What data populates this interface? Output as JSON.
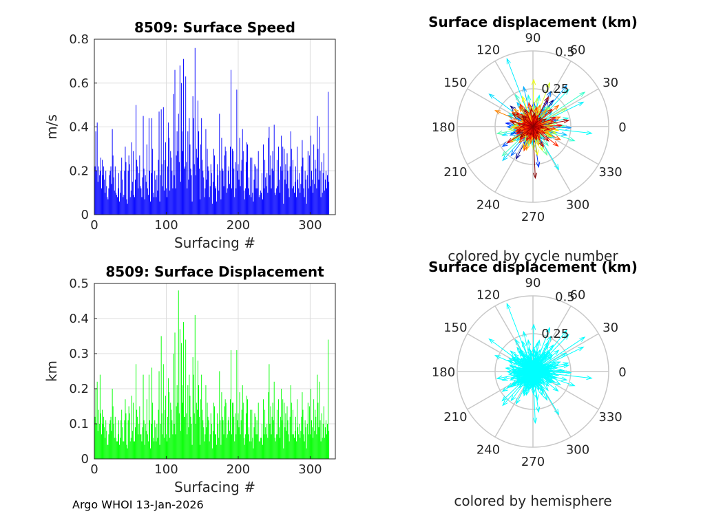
{
  "figure": {
    "footer": "Argo WHOI 13-Jan-2026",
    "colors": {
      "axis": "#262626",
      "grid": "#dcdcdc",
      "polar_grid": "#c8c8c8"
    }
  },
  "chart_data": [
    {
      "type": "bar",
      "title": "8509: Surface Speed",
      "xlabel": "Surfacing #",
      "ylabel": "m/s",
      "xlim": [
        0,
        335
      ],
      "ylim": [
        0,
        0.8
      ],
      "xticks": [
        "0",
        "100",
        "200",
        "300"
      ],
      "xtick_values": [
        0,
        100,
        200,
        300
      ],
      "yticks": [
        "0",
        "0.2",
        "0.4",
        "0.6",
        "0.8"
      ],
      "ytick_values": [
        0,
        0.2,
        0.4,
        0.6,
        0.8
      ],
      "grid": true,
      "color": "#0000ff",
      "x_start": 1,
      "values": [
        0.22,
        0.38,
        0.2,
        0.42,
        0.15,
        0.22,
        0.18,
        0.2,
        0.26,
        0.12,
        0.25,
        0.18,
        0.22,
        0.16,
        0.1,
        0.2,
        0.13,
        0.08,
        0.07,
        0.12,
        0.18,
        0.2,
        0.22,
        0.14,
        0.39,
        0.27,
        0.17,
        0.11,
        0.22,
        0.1,
        0.09,
        0.08,
        0.12,
        0.19,
        0.06,
        0.1,
        0.2,
        0.26,
        0.16,
        0.08,
        0.09,
        0.2,
        0.31,
        0.24,
        0.07,
        0.05,
        0.2,
        0.27,
        0.23,
        0.08,
        0.11,
        0.33,
        0.15,
        0.29,
        0.09,
        0.08,
        0.16,
        0.5,
        0.25,
        0.22,
        0.12,
        0.19,
        0.27,
        0.13,
        0.12,
        0.08,
        0.17,
        0.45,
        0.21,
        0.07,
        0.18,
        0.15,
        0.32,
        0.12,
        0.09,
        0.44,
        0.2,
        0.06,
        0.19,
        0.44,
        0.3,
        0.1,
        0.08,
        0.2,
        0.16,
        0.08,
        0.18,
        0.11,
        0.25,
        0.47,
        0.06,
        0.18,
        0.48,
        0.23,
        0.13,
        0.49,
        0.11,
        0.25,
        0.33,
        0.12,
        0.08,
        0.22,
        0.42,
        0.35,
        0.11,
        0.29,
        0.26,
        0.2,
        0.12,
        0.55,
        0.18,
        0.66,
        0.12,
        0.27,
        0.38,
        0.29,
        0.46,
        0.24,
        0.68,
        0.15,
        0.6,
        0.38,
        0.29,
        0.71,
        0.21,
        0.22,
        0.63,
        0.24,
        0.12,
        0.38,
        0.16,
        0.44,
        0.32,
        0.21,
        0.18,
        0.06,
        0.54,
        0.44,
        0.23,
        0.76,
        0.18,
        0.3,
        0.26,
        0.52,
        0.38,
        0.21,
        0.07,
        0.32,
        0.44,
        0.25,
        0.2,
        0.17,
        0.08,
        0.12,
        0.39,
        0.16,
        0.3,
        0.22,
        0.2,
        0.08,
        0.13,
        0.23,
        0.19,
        0.05,
        0.15,
        0.3,
        0.27,
        0.12,
        0.13,
        0.06,
        0.23,
        0.18,
        0.11,
        0.46,
        0.2,
        0.07,
        0.35,
        0.21,
        0.2,
        0.13,
        0.27,
        0.31,
        0.29,
        0.1,
        0.12,
        0.2,
        0.22,
        0.14,
        0.31,
        0.66,
        0.12,
        0.3,
        0.29,
        0.21,
        0.08,
        0.24,
        0.12,
        0.57,
        0.2,
        0.23,
        0.16,
        0.35,
        0.13,
        0.2,
        0.25,
        0.39,
        0.29,
        0.11,
        0.07,
        0.12,
        0.24,
        0.33,
        0.32,
        0.12,
        0.17,
        0.09,
        0.26,
        0.08,
        0.26,
        0.1,
        0.06,
        0.16,
        0.23,
        0.22,
        0.12,
        0.21,
        0.12,
        0.29,
        0.08,
        0.09,
        0.11,
        0.1,
        0.19,
        0.07,
        0.32,
        0.12,
        0.25,
        0.17,
        0.13,
        0.19,
        0.1,
        0.35,
        0.4,
        0.18,
        0.27,
        0.12,
        0.21,
        0.29,
        0.2,
        0.41,
        0.1,
        0.09,
        0.12,
        0.25,
        0.13,
        0.31,
        0.16,
        0.1,
        0.22,
        0.36,
        0.2,
        0.31,
        0.05,
        0.3,
        0.16,
        0.23,
        0.14,
        0.28,
        0.2,
        0.12,
        0.08,
        0.22,
        0.38,
        0.3,
        0.12,
        0.25,
        0.13,
        0.1,
        0.15,
        0.22,
        0.08,
        0.31,
        0.16,
        0.12,
        0.19,
        0.1,
        0.14,
        0.22,
        0.34,
        0.26,
        0.12,
        0.08,
        0.2,
        0.16,
        0.05,
        0.18,
        0.29,
        0.12,
        0.27,
        0.13,
        0.36,
        0.2,
        0.16,
        0.1,
        0.32,
        0.14,
        0.25,
        0.21,
        0.12,
        0.45,
        0.3,
        0.16,
        0.4,
        0.2,
        0.08,
        0.24,
        0.1,
        0.19,
        0.28,
        0.11,
        0.16,
        0.2,
        0.12,
        0.18,
        0.56,
        0.15
      ]
    },
    {
      "type": "bar",
      "title": "8509: Surface Displacement",
      "xlabel": "Surfacing #",
      "ylabel": "km",
      "xlim": [
        0,
        335
      ],
      "ylim": [
        0,
        0.5
      ],
      "xticks": [
        "0",
        "100",
        "200",
        "300"
      ],
      "xtick_values": [
        0,
        100,
        200,
        300
      ],
      "yticks": [
        "0",
        "0.1",
        "0.2",
        "0.3",
        "0.4",
        "0.5"
      ],
      "ytick_values": [
        0,
        0.1,
        0.2,
        0.3,
        0.4,
        0.5
      ],
      "grid": true,
      "color": "#00ff00",
      "x_start": 1,
      "values": [
        0.12,
        0.2,
        0.1,
        0.22,
        0.08,
        0.14,
        0.1,
        0.24,
        0.13,
        0.07,
        0.14,
        0.1,
        0.12,
        0.09,
        0.06,
        0.11,
        0.08,
        0.04,
        0.04,
        0.07,
        0.1,
        0.11,
        0.12,
        0.08,
        0.2,
        0.15,
        0.1,
        0.06,
        0.12,
        0.06,
        0.05,
        0.05,
        0.07,
        0.11,
        0.04,
        0.06,
        0.11,
        0.14,
        0.09,
        0.05,
        0.05,
        0.11,
        0.17,
        0.13,
        0.04,
        0.03,
        0.11,
        0.15,
        0.13,
        0.05,
        0.06,
        0.18,
        0.08,
        0.16,
        0.05,
        0.05,
        0.09,
        0.27,
        0.14,
        0.12,
        0.07,
        0.1,
        0.15,
        0.07,
        0.07,
        0.05,
        0.09,
        0.24,
        0.11,
        0.04,
        0.1,
        0.08,
        0.17,
        0.07,
        0.05,
        0.24,
        0.11,
        0.03,
        0.1,
        0.26,
        0.16,
        0.06,
        0.05,
        0.11,
        0.09,
        0.05,
        0.1,
        0.06,
        0.14,
        0.25,
        0.04,
        0.1,
        0.35,
        0.13,
        0.07,
        0.27,
        0.06,
        0.14,
        0.18,
        0.07,
        0.05,
        0.12,
        0.23,
        0.19,
        0.06,
        0.16,
        0.14,
        0.11,
        0.07,
        0.3,
        0.1,
        0.36,
        0.07,
        0.15,
        0.21,
        0.16,
        0.48,
        0.13,
        0.37,
        0.08,
        0.33,
        0.21,
        0.16,
        0.39,
        0.12,
        0.12,
        0.34,
        0.13,
        0.07,
        0.21,
        0.09,
        0.24,
        0.18,
        0.12,
        0.1,
        0.04,
        0.29,
        0.24,
        0.13,
        0.41,
        0.1,
        0.16,
        0.14,
        0.28,
        0.21,
        0.12,
        0.04,
        0.17,
        0.24,
        0.14,
        0.11,
        0.09,
        0.05,
        0.07,
        0.21,
        0.09,
        0.16,
        0.12,
        0.11,
        0.05,
        0.07,
        0.13,
        0.1,
        0.03,
        0.08,
        0.16,
        0.15,
        0.07,
        0.07,
        0.04,
        0.13,
        0.1,
        0.06,
        0.25,
        0.11,
        0.04,
        0.19,
        0.12,
        0.11,
        0.07,
        0.15,
        0.17,
        0.16,
        0.06,
        0.07,
        0.11,
        0.12,
        0.08,
        0.17,
        0.31,
        0.07,
        0.16,
        0.16,
        0.12,
        0.05,
        0.13,
        0.07,
        0.31,
        0.11,
        0.13,
        0.09,
        0.19,
        0.07,
        0.11,
        0.14,
        0.21,
        0.16,
        0.06,
        0.04,
        0.07,
        0.13,
        0.18,
        0.17,
        0.07,
        0.09,
        0.05,
        0.14,
        0.05,
        0.14,
        0.06,
        0.03,
        0.09,
        0.13,
        0.12,
        0.07,
        0.11,
        0.07,
        0.16,
        0.05,
        0.05,
        0.06,
        0.06,
        0.1,
        0.04,
        0.17,
        0.07,
        0.14,
        0.09,
        0.07,
        0.1,
        0.06,
        0.19,
        0.27,
        0.1,
        0.15,
        0.07,
        0.12,
        0.16,
        0.11,
        0.22,
        0.06,
        0.05,
        0.07,
        0.14,
        0.07,
        0.17,
        0.09,
        0.06,
        0.12,
        0.2,
        0.11,
        0.17,
        0.03,
        0.16,
        0.09,
        0.13,
        0.08,
        0.15,
        0.11,
        0.07,
        0.05,
        0.12,
        0.21,
        0.16,
        0.07,
        0.14,
        0.07,
        0.06,
        0.08,
        0.12,
        0.05,
        0.17,
        0.09,
        0.07,
        0.1,
        0.06,
        0.08,
        0.12,
        0.19,
        0.14,
        0.07,
        0.05,
        0.11,
        0.09,
        0.03,
        0.1,
        0.16,
        0.07,
        0.15,
        0.07,
        0.2,
        0.11,
        0.09,
        0.06,
        0.17,
        0.08,
        0.14,
        0.12,
        0.07,
        0.24,
        0.16,
        0.09,
        0.22,
        0.11,
        0.05,
        0.13,
        0.06,
        0.1,
        0.15,
        0.06,
        0.09,
        0.11,
        0.07,
        0.1,
        0.34,
        0.08
      ]
    },
    {
      "type": "polar",
      "title": "Surface displacement (km)",
      "caption": "colored by cycle number",
      "rlim": [
        0,
        0.5
      ],
      "rticks": [
        "0.25",
        "0.5"
      ],
      "rtick_values": [
        0.25,
        0.5
      ],
      "angle_labels": [
        "0",
        "30",
        "60",
        "90",
        "120",
        "150",
        "180",
        "210",
        "240",
        "270",
        "300",
        "330"
      ],
      "angle_values": [
        0,
        30,
        60,
        90,
        120,
        150,
        180,
        210,
        240,
        270,
        300,
        330
      ],
      "color_scheme": "jet colormap by cycle number",
      "vectors_ref": "displacement"
    },
    {
      "type": "polar",
      "title": "Surface displacement (km)",
      "caption": "colored by hemisphere",
      "rlim": [
        0,
        0.5
      ],
      "rticks": [
        "0.25",
        "0.5"
      ],
      "rtick_values": [
        0.25,
        0.5
      ],
      "angle_labels": [
        "0",
        "30",
        "60",
        "90",
        "120",
        "150",
        "180",
        "210",
        "240",
        "270",
        "300",
        "330"
      ],
      "angle_values": [
        0,
        30,
        60,
        90,
        120,
        150,
        180,
        210,
        240,
        270,
        300,
        330
      ],
      "color_scheme": "single color (hemisphere)",
      "color": "#00ffff",
      "vectors_ref": "displacement"
    }
  ]
}
